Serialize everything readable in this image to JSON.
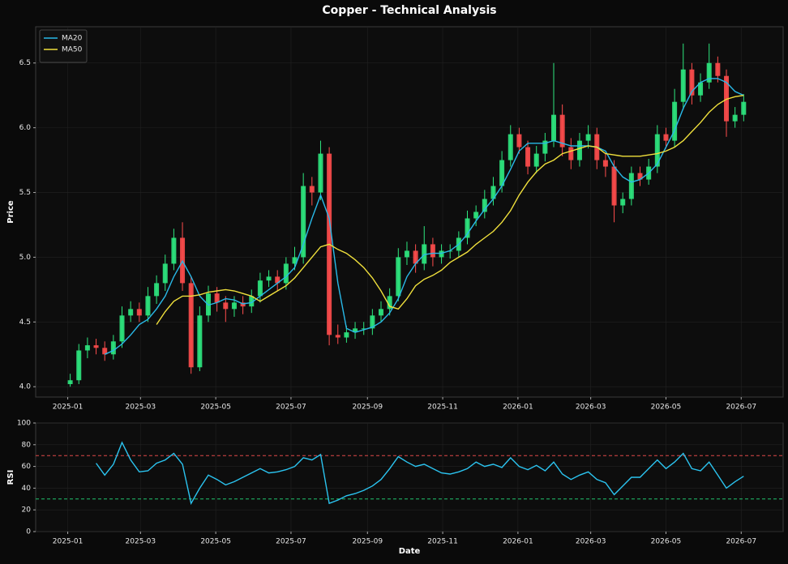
{
  "title": "Copper - Technical Analysis",
  "chart_data": [
    {
      "type": "candlestick",
      "ylabel": "Price",
      "grid": true,
      "legend": "upper left",
      "up_color": "#2ee87f",
      "down_color": "#ff4d4d",
      "xlim": [
        "2024-12-06",
        "2026-08-04"
      ],
      "ylim": [
        3.92,
        6.78
      ],
      "xticks": [
        {
          "value": "2025-01-01",
          "label": "2025-01"
        },
        {
          "value": "2025-03-01",
          "label": "2025-03"
        },
        {
          "value": "2025-05-01",
          "label": "2025-05"
        },
        {
          "value": "2025-07-01",
          "label": "2025-07"
        },
        {
          "value": "2025-09-01",
          "label": "2025-09"
        },
        {
          "value": "2025-11-01",
          "label": "2025-11"
        },
        {
          "value": "2026-01-01",
          "label": "2026-01"
        },
        {
          "value": "2026-03-01",
          "label": "2026-03"
        },
        {
          "value": "2026-05-01",
          "label": "2026-05"
        },
        {
          "value": "2026-07-01",
          "label": "2026-07"
        }
      ],
      "yticks": [
        {
          "value": 4,
          "label": "4.0"
        },
        4.5,
        {
          "value": 5,
          "label": "5.0"
        },
        5.5,
        {
          "value": 6,
          "label": "6.0"
        },
        6.5
      ],
      "x": [
        "2025-01-03",
        "2025-01-10",
        "2025-01-17",
        "2025-01-24",
        "2025-01-31",
        "2025-02-07",
        "2025-02-14",
        "2025-02-21",
        "2025-02-28",
        "2025-03-07",
        "2025-03-14",
        "2025-03-21",
        "2025-03-28",
        "2025-04-04",
        "2025-04-11",
        "2025-04-18",
        "2025-04-25",
        "2025-05-02",
        "2025-05-09",
        "2025-05-16",
        "2025-05-23",
        "2025-05-30",
        "2025-06-06",
        "2025-06-13",
        "2025-06-20",
        "2025-06-27",
        "2025-07-04",
        "2025-07-11",
        "2025-07-18",
        "2025-07-25",
        "2025-08-01",
        "2025-08-08",
        "2025-08-15",
        "2025-08-22",
        "2025-08-29",
        "2025-09-05",
        "2025-09-12",
        "2025-09-19",
        "2025-09-26",
        "2025-10-03",
        "2025-10-10",
        "2025-10-17",
        "2025-10-24",
        "2025-10-31",
        "2025-11-07",
        "2025-11-14",
        "2025-11-21",
        "2025-11-28",
        "2025-12-05",
        "2025-12-12",
        "2025-12-19",
        "2025-12-26",
        "2026-01-02",
        "2026-01-09",
        "2026-01-16",
        "2026-01-23",
        "2026-01-30",
        "2026-02-06",
        "2026-02-13",
        "2026-02-20",
        "2026-02-27",
        "2026-03-06",
        "2026-03-13",
        "2026-03-20",
        "2026-03-27",
        "2026-04-03",
        "2026-04-10",
        "2026-04-17",
        "2026-04-24",
        "2026-05-01",
        "2026-05-08",
        "2026-05-15",
        "2026-05-22",
        "2026-05-29",
        "2026-06-05",
        "2026-06-12",
        "2026-06-19",
        "2026-06-26",
        "2026-07-03"
      ],
      "open": [
        4.02,
        4.05,
        4.28,
        4.32,
        4.3,
        4.25,
        4.35,
        4.55,
        4.6,
        4.55,
        4.7,
        4.8,
        4.95,
        5.15,
        4.8,
        4.15,
        4.55,
        4.72,
        4.65,
        4.6,
        4.65,
        4.62,
        4.7,
        4.82,
        4.85,
        4.8,
        4.95,
        5.0,
        5.55,
        5.5,
        5.8,
        4.4,
        4.38,
        4.42,
        4.45,
        4.45,
        4.55,
        4.6,
        4.7,
        5.0,
        5.05,
        4.95,
        5.1,
        5.0,
        5.05,
        5.05,
        5.15,
        5.3,
        5.35,
        5.45,
        5.55,
        5.75,
        5.95,
        5.85,
        5.7,
        5.8,
        5.9,
        6.1,
        5.85,
        5.75,
        5.9,
        5.95,
        5.75,
        5.7,
        5.4,
        5.45,
        5.65,
        5.6,
        5.7,
        5.95,
        5.9,
        6.2,
        6.45,
        6.25,
        6.35,
        6.5,
        6.4,
        6.05,
        6.1
      ],
      "high": [
        4.1,
        4.33,
        4.38,
        4.37,
        4.35,
        4.4,
        4.62,
        4.66,
        4.65,
        4.77,
        4.86,
        5.02,
        5.22,
        5.27,
        4.85,
        4.62,
        4.78,
        4.77,
        4.7,
        4.7,
        4.7,
        4.75,
        4.88,
        4.9,
        4.9,
        5.0,
        5.08,
        5.65,
        5.62,
        5.9,
        5.85,
        4.48,
        4.47,
        4.5,
        4.5,
        4.6,
        4.66,
        4.76,
        5.07,
        5.12,
        5.1,
        5.24,
        5.15,
        5.1,
        5.1,
        5.2,
        5.36,
        5.4,
        5.52,
        5.62,
        5.82,
        6.02,
        6.0,
        5.9,
        5.86,
        5.96,
        6.5,
        6.18,
        5.92,
        5.96,
        6.02,
        6.0,
        5.8,
        5.75,
        5.5,
        5.7,
        5.7,
        5.76,
        6.02,
        6.0,
        6.3,
        6.65,
        6.5,
        6.42,
        6.65,
        6.55,
        6.45,
        6.16,
        6.26
      ],
      "low": [
        4.0,
        4.02,
        4.22,
        4.25,
        4.2,
        4.21,
        4.3,
        4.5,
        4.5,
        4.5,
        4.64,
        4.74,
        4.9,
        4.74,
        4.1,
        4.12,
        4.5,
        4.58,
        4.5,
        4.54,
        4.56,
        4.57,
        4.65,
        4.77,
        4.74,
        4.75,
        4.9,
        4.95,
        5.4,
        5.44,
        4.32,
        4.33,
        4.34,
        4.37,
        4.4,
        4.4,
        4.5,
        4.55,
        4.66,
        4.94,
        4.88,
        4.9,
        4.93,
        4.95,
        4.99,
        5.0,
        5.1,
        5.24,
        5.3,
        5.4,
        5.5,
        5.7,
        5.8,
        5.64,
        5.65,
        5.74,
        5.85,
        5.78,
        5.68,
        5.7,
        5.84,
        5.68,
        5.62,
        5.27,
        5.34,
        5.4,
        5.55,
        5.56,
        5.65,
        5.84,
        5.85,
        6.14,
        6.18,
        6.2,
        6.3,
        6.35,
        5.93,
        6.0,
        6.05
      ],
      "close": [
        4.05,
        4.28,
        4.32,
        4.3,
        4.25,
        4.35,
        4.55,
        4.6,
        4.55,
        4.7,
        4.8,
        4.95,
        5.15,
        4.8,
        4.15,
        4.55,
        4.72,
        4.65,
        4.6,
        4.65,
        4.62,
        4.7,
        4.82,
        4.85,
        4.8,
        4.95,
        5.0,
        5.55,
        5.5,
        5.8,
        4.4,
        4.38,
        4.42,
        4.45,
        4.45,
        4.55,
        4.6,
        4.7,
        5.0,
        5.05,
        4.95,
        5.1,
        5.0,
        5.05,
        5.05,
        5.15,
        5.3,
        5.35,
        5.45,
        5.55,
        5.75,
        5.95,
        5.85,
        5.7,
        5.8,
        5.9,
        6.1,
        5.85,
        5.75,
        5.9,
        5.95,
        5.75,
        5.7,
        5.4,
        5.45,
        5.65,
        5.6,
        5.7,
        5.95,
        5.9,
        6.2,
        6.45,
        6.25,
        6.35,
        6.5,
        6.4,
        6.05,
        6.1,
        6.2
      ],
      "series": [
        {
          "name": "MA20",
          "color": "#29b9e8",
          "values": [
            null,
            null,
            null,
            null,
            4.25,
            4.28,
            4.33,
            4.4,
            4.48,
            4.52,
            4.6,
            4.7,
            4.85,
            4.97,
            4.85,
            4.7,
            4.63,
            4.65,
            4.68,
            4.67,
            4.64,
            4.65,
            4.7,
            4.75,
            4.8,
            4.85,
            4.92,
            5.1,
            5.3,
            5.48,
            5.3,
            4.8,
            4.45,
            4.42,
            4.44,
            4.46,
            4.5,
            4.57,
            4.68,
            4.85,
            4.95,
            5.02,
            5.03,
            5.03,
            5.05,
            5.1,
            5.18,
            5.28,
            5.37,
            5.45,
            5.55,
            5.68,
            5.82,
            5.88,
            5.88,
            5.88,
            5.9,
            5.88,
            5.86,
            5.86,
            5.86,
            5.85,
            5.82,
            5.7,
            5.62,
            5.58,
            5.6,
            5.65,
            5.72,
            5.85,
            5.98,
            6.15,
            6.28,
            6.35,
            6.38,
            6.38,
            6.35,
            6.28,
            6.25
          ]
        },
        {
          "name": "MA50",
          "color": "#f0e03c",
          "values": [
            null,
            null,
            null,
            null,
            null,
            null,
            null,
            null,
            null,
            null,
            4.48,
            4.58,
            4.66,
            4.7,
            4.7,
            4.71,
            4.73,
            4.74,
            4.75,
            4.74,
            4.72,
            4.7,
            4.66,
            4.7,
            4.74,
            4.78,
            4.84,
            4.92,
            5.0,
            5.08,
            5.1,
            5.06,
            5.03,
            4.98,
            4.92,
            4.84,
            4.74,
            4.62,
            4.6,
            4.68,
            4.78,
            4.83,
            4.86,
            4.9,
            4.96,
            5.0,
            5.04,
            5.1,
            5.15,
            5.2,
            5.27,
            5.36,
            5.48,
            5.58,
            5.66,
            5.72,
            5.75,
            5.8,
            5.82,
            5.84,
            5.86,
            5.85,
            5.8,
            5.79,
            5.78,
            5.78,
            5.78,
            5.79,
            5.8,
            5.82,
            5.85,
            5.9,
            5.97,
            6.04,
            6.12,
            6.18,
            6.22,
            6.24,
            6.25
          ]
        }
      ]
    },
    {
      "type": "line",
      "ylabel": "RSI",
      "xlabel": "Date",
      "grid": true,
      "xlim": [
        "2024-12-06",
        "2026-08-04"
      ],
      "ylim": [
        0,
        100
      ],
      "xticks": [
        {
          "value": "2025-01-01",
          "label": "2025-01"
        },
        {
          "value": "2025-03-01",
          "label": "2025-03"
        },
        {
          "value": "2025-05-01",
          "label": "2025-05"
        },
        {
          "value": "2025-07-01",
          "label": "2025-07"
        },
        {
          "value": "2025-09-01",
          "label": "2025-09"
        },
        {
          "value": "2025-11-01",
          "label": "2025-11"
        },
        {
          "value": "2026-01-01",
          "label": "2026-01"
        },
        {
          "value": "2026-03-01",
          "label": "2026-03"
        },
        {
          "value": "2026-05-01",
          "label": "2026-05"
        },
        {
          "value": "2026-07-01",
          "label": "2026-07"
        }
      ],
      "yticks": [
        0,
        20,
        40,
        60,
        80,
        100
      ],
      "hlines": [
        {
          "value": 70,
          "color": "#e04848"
        },
        {
          "value": 30,
          "color": "#22c46e"
        }
      ],
      "x": [
        "2025-01-03",
        "2025-01-10",
        "2025-01-17",
        "2025-01-24",
        "2025-01-31",
        "2025-02-07",
        "2025-02-14",
        "2025-02-21",
        "2025-02-28",
        "2025-03-07",
        "2025-03-14",
        "2025-03-21",
        "2025-03-28",
        "2025-04-04",
        "2025-04-11",
        "2025-04-18",
        "2025-04-25",
        "2025-05-02",
        "2025-05-09",
        "2025-05-16",
        "2025-05-23",
        "2025-05-30",
        "2025-06-06",
        "2025-06-13",
        "2025-06-20",
        "2025-06-27",
        "2025-07-04",
        "2025-07-11",
        "2025-07-18",
        "2025-07-25",
        "2025-08-01",
        "2025-08-08",
        "2025-08-15",
        "2025-08-22",
        "2025-08-29",
        "2025-09-05",
        "2025-09-12",
        "2025-09-19",
        "2025-09-26",
        "2025-10-03",
        "2025-10-10",
        "2025-10-17",
        "2025-10-24",
        "2025-10-31",
        "2025-11-07",
        "2025-11-14",
        "2025-11-21",
        "2025-11-28",
        "2025-12-05",
        "2025-12-12",
        "2025-12-19",
        "2025-12-26",
        "2026-01-02",
        "2026-01-09",
        "2026-01-16",
        "2026-01-23",
        "2026-01-30",
        "2026-02-06",
        "2026-02-13",
        "2026-02-20",
        "2026-02-27",
        "2026-03-06",
        "2026-03-13",
        "2026-03-20",
        "2026-03-27",
        "2026-04-03",
        "2026-04-10",
        "2026-04-17",
        "2026-04-24",
        "2026-05-01",
        "2026-05-08",
        "2026-05-15",
        "2026-05-22",
        "2026-05-29",
        "2026-06-05",
        "2026-06-12",
        "2026-06-19",
        "2026-06-26",
        "2026-07-03"
      ],
      "color": "#2bc4f0",
      "values": [
        null,
        null,
        null,
        63,
        52,
        62,
        82,
        66,
        55,
        56,
        63,
        66,
        72,
        62,
        26,
        40,
        52,
        48,
        43,
        46,
        50,
        54,
        58,
        54,
        55,
        57,
        60,
        68,
        66,
        71,
        26,
        29,
        33,
        35,
        38,
        42,
        48,
        58,
        69,
        64,
        60,
        62,
        58,
        54,
        53,
        55,
        58,
        64,
        60,
        62,
        59,
        68,
        60,
        57,
        61,
        56,
        64,
        53,
        48,
        52,
        55,
        48,
        45,
        34,
        42,
        50,
        50,
        58,
        66,
        58,
        64,
        72,
        58,
        56,
        64,
        52,
        40,
        46,
        51
      ]
    }
  ]
}
